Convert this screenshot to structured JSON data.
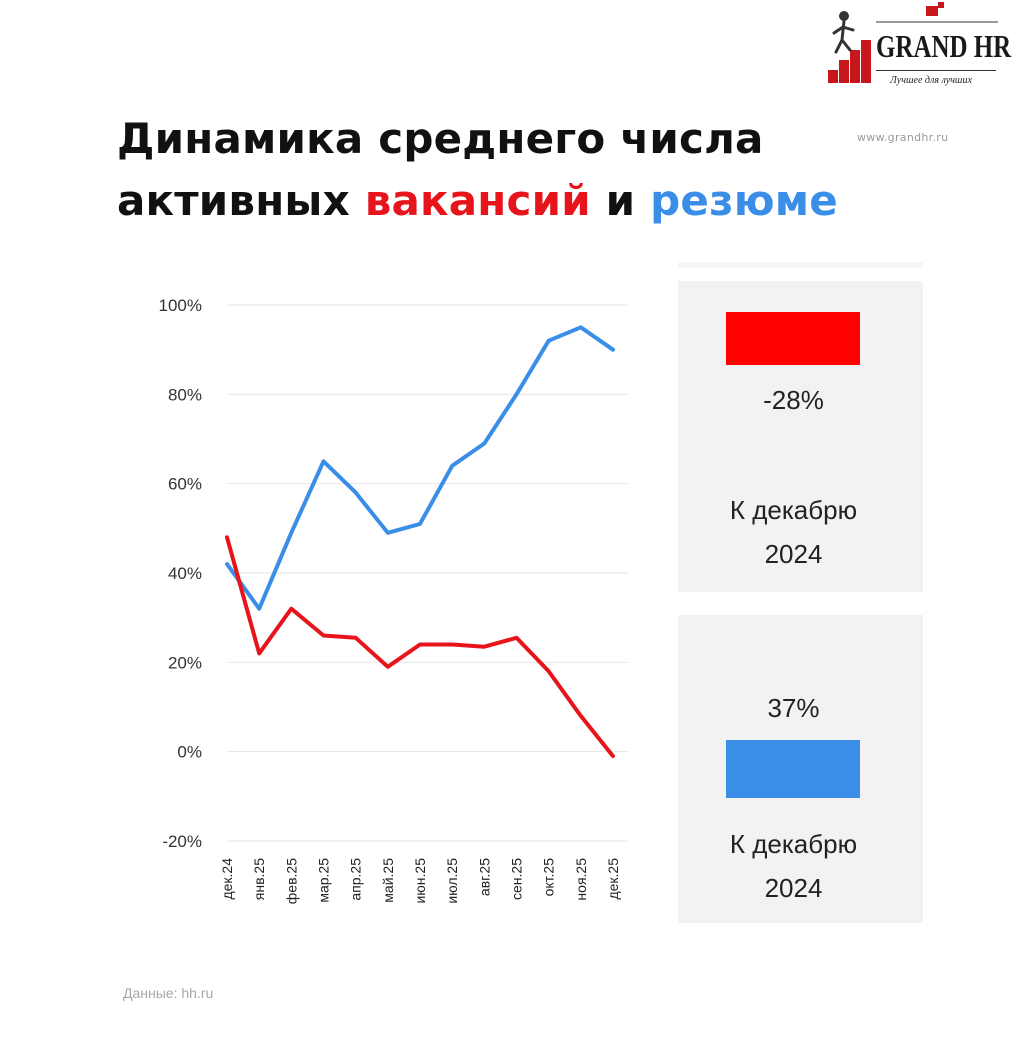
{
  "logo": {
    "name": "GRAND HR",
    "tagline": "Лучшее для лучших"
  },
  "website": "www.grandhr.ru",
  "title": {
    "line1": "Динамика среднего числа",
    "line2_prefix": "активных ",
    "highlight_vacancies": "вакансий",
    "conjunction": " и ",
    "highlight_resumes": "резюме"
  },
  "colors": {
    "vacancies": "#e8141b",
    "resumes": "#3b8ee8"
  },
  "chart_data": {
    "type": "line",
    "categories": [
      "дек.24",
      "янв.25",
      "фев.25",
      "мар.25",
      "апр.25",
      "май.25",
      "июн.25",
      "июл.25",
      "авг.25",
      "сен.25",
      "окт.25",
      "ноя.25",
      "дек.25"
    ],
    "series": [
      {
        "color": "#3b8ee8",
        "values": [
          42,
          32,
          49,
          65,
          58,
          49,
          51,
          64,
          69,
          80,
          92,
          95,
          90
        ]
      },
      {
        "color": "#e8141b",
        "values": [
          48,
          22,
          32,
          26,
          25.5,
          19,
          24,
          24,
          23.5,
          25.5,
          18,
          8,
          -1
        ]
      }
    ],
    "yticks": [
      "100%",
      "80%",
      "60%",
      "40%",
      "20%",
      "0%",
      "-20%"
    ],
    "ytick_values": [
      100,
      80,
      60,
      40,
      20,
      0,
      -20
    ],
    "ylim": [
      -20,
      100
    ],
    "grid": true
  },
  "cards": [
    {
      "value": "-28%",
      "caption_line1": "К декабрю",
      "caption_line2": "2024",
      "color": "#ff0000"
    },
    {
      "value": "37%",
      "caption_line1": "К декабрю",
      "caption_line2": "2024",
      "color": "#3b8ee8"
    }
  ],
  "source": "Данные: hh.ru"
}
